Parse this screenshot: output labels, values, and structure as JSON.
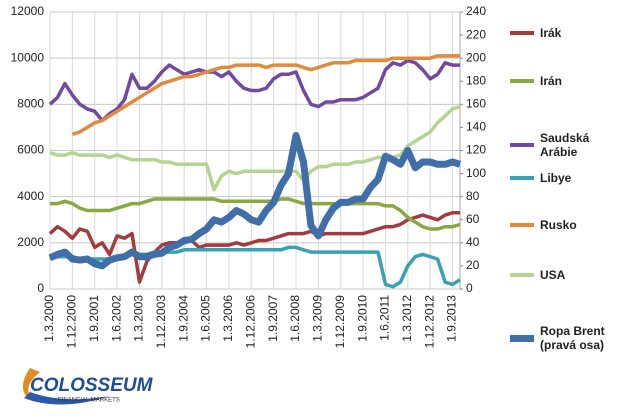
{
  "chart_data": {
    "type": "line",
    "categories": [
      "1.3.2000",
      null,
      null,
      "1.12.2000",
      null,
      null,
      "1.9.2001",
      null,
      null,
      "1.6.2002",
      null,
      null,
      "1.3.2003",
      null,
      null,
      "1.12.2003",
      null,
      null,
      "1.9.2004",
      null,
      null,
      "1.6.2005",
      null,
      null,
      "1.3.2006",
      null,
      null,
      "1.12.2006",
      null,
      null,
      "1.9.2007",
      null,
      null,
      "1.6.2008",
      null,
      null,
      "1.3.2009",
      null,
      null,
      "1.12.2009",
      null,
      null,
      "1.9.2010",
      null,
      null,
      "1.6.2011",
      null,
      null,
      "1.3.2012",
      null,
      null,
      "1.12.2012",
      null,
      null,
      "1.9.2013",
      null
    ],
    "ylim": [
      0,
      12000
    ],
    "yticks": [
      0,
      2000,
      4000,
      6000,
      8000,
      10000,
      12000
    ],
    "y2lim": [
      0,
      240
    ],
    "y2ticks": [
      0,
      20,
      40,
      60,
      80,
      100,
      120,
      140,
      160,
      180,
      200,
      220,
      240
    ],
    "grid": true,
    "series": [
      {
        "name": "Irák",
        "color": "#a33b3b",
        "values": [
          2400,
          2700,
          2500,
          2200,
          2600,
          2500,
          1800,
          2000,
          1500,
          2300,
          2200,
          2400,
          300,
          1200,
          1600,
          1900,
          2000,
          2000,
          2000,
          2100,
          1800,
          1900,
          1900,
          1900,
          1900,
          2000,
          1900,
          2000,
          2100,
          2100,
          2200,
          2300,
          2400,
          2400,
          2400,
          2500,
          2300,
          2400,
          2400,
          2400,
          2400,
          2400,
          2400,
          2500,
          2600,
          2700,
          2700,
          2800,
          3000,
          3100,
          3200,
          3100,
          3000,
          3200,
          3300,
          3300
        ]
      },
      {
        "name": "Irán",
        "color": "#8aa841",
        "values": [
          3700,
          3700,
          3800,
          3700,
          3500,
          3400,
          3400,
          3400,
          3400,
          3500,
          3600,
          3700,
          3700,
          3800,
          3900,
          3900,
          3900,
          3900,
          3900,
          3900,
          3900,
          3900,
          3900,
          3800,
          3800,
          3800,
          3800,
          3800,
          3800,
          3800,
          3800,
          3900,
          3900,
          3800,
          3700,
          3700,
          3700,
          3700,
          3700,
          3700,
          3700,
          3700,
          3700,
          3700,
          3700,
          3600,
          3600,
          3400,
          3100,
          2900,
          2700,
          2600,
          2600,
          2700,
          2700,
          2800
        ]
      },
      {
        "name": "Saudská Arábie",
        "color": "#6f4aa0",
        "values": [
          8000,
          8300,
          8900,
          8400,
          8000,
          7800,
          7700,
          7300,
          7600,
          7800,
          8200,
          9300,
          8700,
          8700,
          9000,
          9400,
          9700,
          9500,
          9300,
          9400,
          9500,
          9400,
          9400,
          9200,
          9400,
          9000,
          8700,
          8600,
          8600,
          8700,
          9100,
          9300,
          9300,
          9400,
          8600,
          8000,
          7900,
          8100,
          8100,
          8200,
          8200,
          8200,
          8300,
          8500,
          8700,
          9500,
          9800,
          9700,
          9900,
          9800,
          9500,
          9100,
          9300,
          9800,
          9700,
          9700
        ]
      },
      {
        "name": "Libye",
        "color": "#3aa0b8",
        "values": [
          1300,
          1400,
          1400,
          1400,
          1300,
          1300,
          1300,
          1300,
          1300,
          1300,
          1400,
          1500,
          1500,
          1500,
          1600,
          1600,
          1600,
          1600,
          1700,
          1700,
          1700,
          1700,
          1700,
          1700,
          1700,
          1700,
          1700,
          1700,
          1700,
          1700,
          1700,
          1700,
          1800,
          1800,
          1700,
          1600,
          1600,
          1600,
          1600,
          1600,
          1600,
          1600,
          1600,
          1600,
          1600,
          200,
          100,
          300,
          1000,
          1400,
          1500,
          1400,
          1300,
          300,
          200,
          400
        ]
      },
      {
        "name": "Rusko",
        "color": "#e08a3c",
        "values": [
          null,
          null,
          null,
          6700,
          6800,
          7000,
          7200,
          7300,
          7500,
          7700,
          7900,
          8100,
          8300,
          8500,
          8700,
          8900,
          9000,
          9100,
          9200,
          9200,
          9300,
          9400,
          9500,
          9600,
          9600,
          9700,
          9700,
          9700,
          9700,
          9600,
          9700,
          9700,
          9700,
          9700,
          9600,
          9500,
          9600,
          9700,
          9800,
          9800,
          9800,
          9900,
          9900,
          9900,
          9900,
          9900,
          10000,
          10000,
          10000,
          10000,
          10000,
          10000,
          10100,
          10100,
          10100,
          10100
        ]
      },
      {
        "name": "USA",
        "color": "#b4d48f",
        "values": [
          5900,
          5800,
          5800,
          5900,
          5800,
          5800,
          5800,
          5800,
          5700,
          5800,
          5700,
          5600,
          5600,
          5600,
          5600,
          5500,
          5500,
          5400,
          5400,
          5400,
          5400,
          5400,
          4300,
          4900,
          5100,
          5000,
          5100,
          5100,
          5100,
          5100,
          5100,
          5100,
          5100,
          5100,
          4700,
          5100,
          5300,
          5300,
          5400,
          5400,
          5400,
          5500,
          5500,
          5600,
          5700,
          5700,
          5700,
          5800,
          6200,
          6400,
          6600,
          6800,
          7200,
          7500,
          7800,
          7900
        ]
      },
      {
        "name": "Ropa Brent (pravá osa)",
        "color": "#3f6ea8",
        "axis": "y2",
        "values": [
          27,
          30,
          32,
          26,
          25,
          26,
          22,
          20,
          25,
          27,
          28,
          32,
          28,
          28,
          30,
          31,
          36,
          38,
          42,
          43,
          48,
          52,
          60,
          58,
          62,
          68,
          65,
          60,
          58,
          68,
          75,
          90,
          100,
          133,
          110,
          55,
          46,
          60,
          70,
          75,
          75,
          78,
          78,
          88,
          95,
          115,
          112,
          108,
          120,
          105,
          110,
          110,
          108,
          108,
          110,
          108
        ]
      }
    ]
  },
  "logo": {
    "name": "COLOSSEUM",
    "tagline": "FINANCIAL MARKETS"
  }
}
